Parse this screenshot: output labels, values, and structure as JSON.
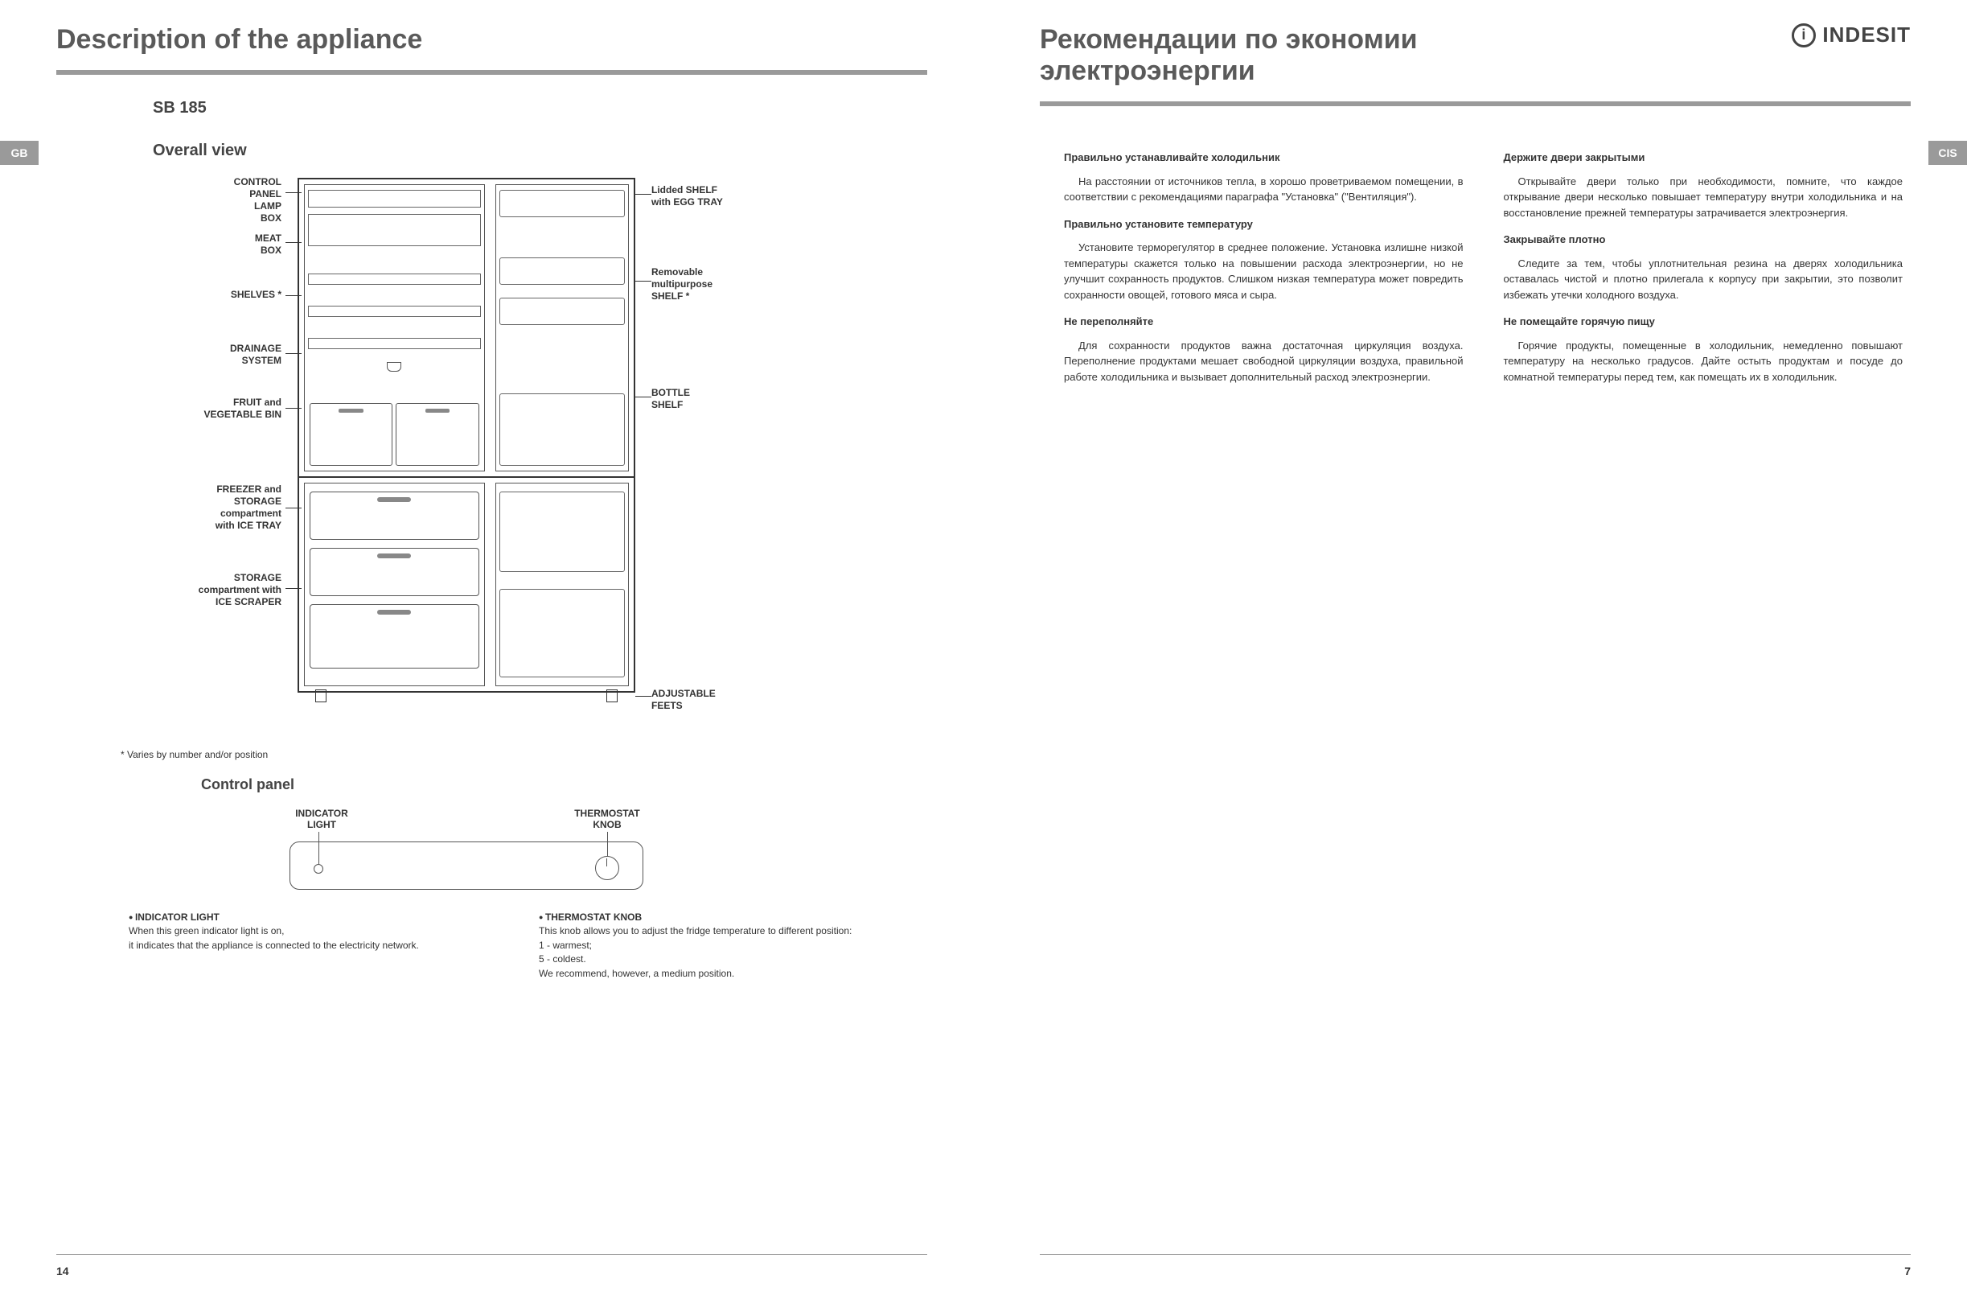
{
  "left": {
    "title": "Description of the appliance",
    "tab": "GB",
    "model": "SB 185",
    "overall_view": "Overall view",
    "callouts_left": {
      "control": "CONTROL\nPANEL\nLAMP\nBOX",
      "meat": "MEAT\nBOX",
      "shelves": "SHELVES *",
      "drainage": "DRAINAGE\nSYSTEM",
      "fruit": "FRUIT and\nVEGETABLE BIN",
      "freezer": "FREEZER and\nSTORAGE\ncompartment\nwith ICE TRAY",
      "storage": "STORAGE\ncompartment with\nICE SCRAPER"
    },
    "callouts_right": {
      "lidded": "Lidded SHELF\nwith  EGG TRAY",
      "removable": "Removable\nmultipurpose\nSHELF *",
      "bottle": "BOTTLE\nSHELF",
      "feet": "ADJUSTABLE\nFEETS"
    },
    "footnote": "* Varies by number and/or position",
    "control_panel_head": "Control panel",
    "panel_labels": {
      "light": "INDICATOR\nLIGHT",
      "knob": "THERMOSTAT\nKNOB"
    },
    "bullets": {
      "light_head": "INDICATOR LIGHT",
      "light_body": "When this green indicator light is on,\nit indicates that the appliance is connected to the electricity network.",
      "knob_head": "THERMOSTAT KNOB",
      "knob_body": "This knob allows you to adjust the fridge temperature to  different position:\n1 - warmest;\n5 - coldest.\nWe recommend, however, a medium position."
    },
    "page_num": "14"
  },
  "right": {
    "title": "Рекомендации по экономии электроэнергии",
    "brand": "INDESIT",
    "tab": "CIS",
    "col1": {
      "h1": "Правильно устанавливайте холодильник",
      "p1": "На расстоянии от источников тепла, в хорошо проветриваемом помещении, в соответствии с рекомендациями параграфа \"Установка\" (\"Вентиляция\").",
      "h2": "Правильно установите температуру",
      "p2": "Установите терморегулятор в среднее положение. Установка излишне низкой температуры скажется только на повышении расхода электроэнергии, но не улучшит сохранность продуктов. Слишком низкая температура может повредить сохранности овощей, готового мяса и сыра.",
      "h3": "Не переполняйте",
      "p3": "Для сохранности продуктов важна достаточная циркуляция воздуха. Переполнение продуктами мешает свободной циркуляции воздуха, правильной работе холодильника и вызывает дополнительный расход электроэнергии."
    },
    "col2": {
      "h1": "Держите двери закрытыми",
      "p1": "Открывайте двери только при необходимости, помните, что каждое открывание двери несколько повышает температуру внутри холодильника и на восстановление прежней температуры затрачивается электроэнергия.",
      "h2": "Закрывайте плотно",
      "p2": "Следите за тем, чтобы уплотнительная резина на дверях холодильника оставалась чистой и плотно прилегала к корпусу при закрытии, это позволит избежать утечки холодного воздуха.",
      "h3": "Не помещайте горячую пищу",
      "p3": "Горячие продукты, помещенные в холодильник, немедленно повышают температуру на несколько градусов. Дайте остыть продуктам и посуде до комнатной температуры перед тем, как помещать их в холодильник."
    },
    "page_num": "7"
  },
  "colors": {
    "rule": "#9a9a9a",
    "text": "#333333",
    "heading": "#5a5a5a"
  }
}
